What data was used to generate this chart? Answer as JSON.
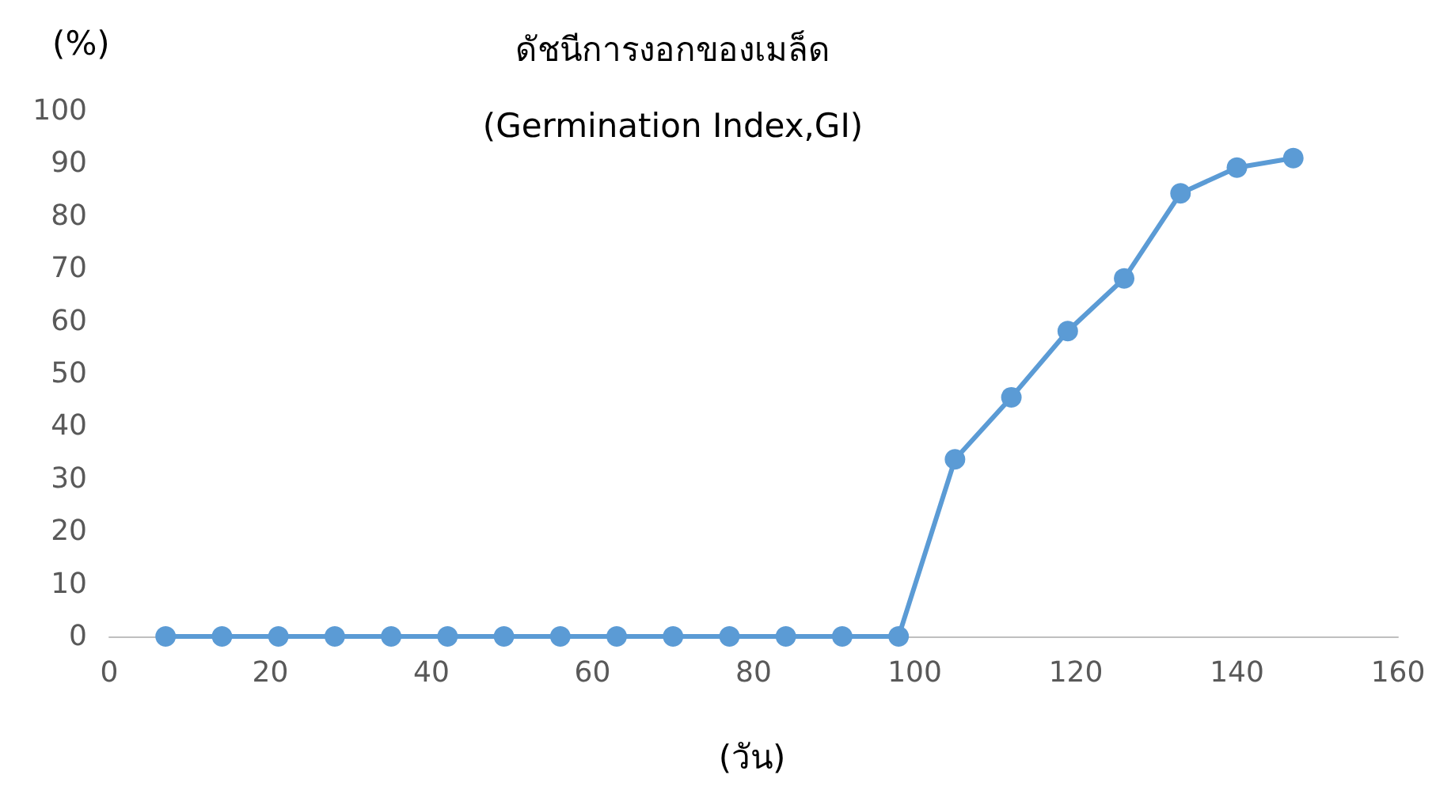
{
  "chart_data": {
    "type": "line",
    "title": "ดัชนีการงอกของเมล็ด",
    "subtitle": "(Germination Index,GI)",
    "xlabel": "(วัน)",
    "ylabel": "(%)",
    "x": [
      7,
      14,
      21,
      28,
      35,
      42,
      49,
      56,
      63,
      70,
      77,
      84,
      91,
      98,
      105,
      112,
      119,
      126,
      133,
      140,
      147
    ],
    "series": [
      {
        "color": "#5b9bd5",
        "values": [
          0,
          0,
          0,
          0,
          0,
          0,
          0,
          0,
          0,
          0,
          0,
          0,
          0,
          0,
          33.7,
          45.5,
          58.1,
          68.1,
          84.3,
          89.2,
          91.0
        ]
      }
    ],
    "xlim": [
      0,
      160
    ],
    "xticks": [
      0,
      20,
      40,
      60,
      80,
      100,
      120,
      140,
      160
    ],
    "ylim": [
      0,
      100
    ],
    "yticks": [
      0,
      10,
      20,
      30,
      40,
      50,
      60,
      70,
      80,
      90,
      100
    ],
    "marker": "circle",
    "line_style": "solid"
  }
}
